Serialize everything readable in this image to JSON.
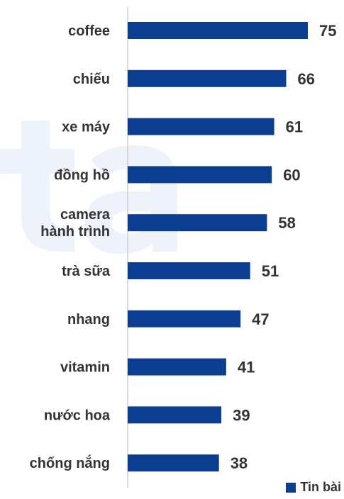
{
  "colors": {
    "bar": "#0b3d91",
    "text": "#333333",
    "axis": "#d0d0d0",
    "watermark": "#eef2fa"
  },
  "legend": {
    "label": "Tin bài"
  },
  "chart_data": {
    "type": "bar",
    "orientation": "horizontal",
    "categories": [
      "coffee",
      "chiếu",
      "xe máy",
      "đồng hồ",
      "camera\nhành trình",
      "trà sữa",
      "nhang",
      "vitamin",
      "nước hoa",
      "chống nắng"
    ],
    "series": [
      {
        "name": "Tin bài",
        "values": [
          75,
          66,
          61,
          60,
          58,
          51,
          47,
          41,
          39,
          38
        ]
      }
    ],
    "xlim": [
      0,
      75
    ],
    "grid": false,
    "legend_position": "bottom-right",
    "data_labels": true
  }
}
